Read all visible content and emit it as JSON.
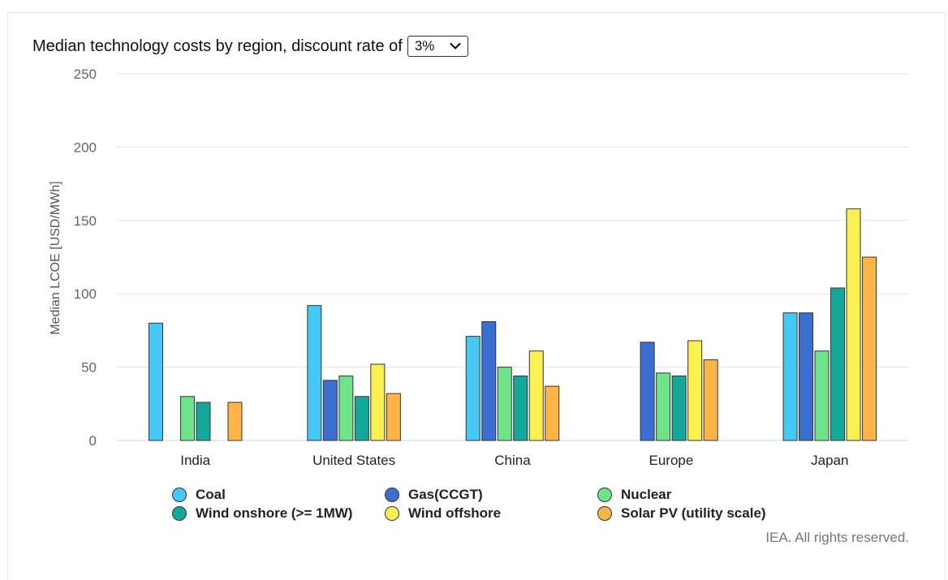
{
  "header": {
    "title": "Median technology costs by region, discount rate of",
    "discount_rate": "3%"
  },
  "credit": "IEA. All rights reserved.",
  "chart_data": {
    "type": "bar",
    "ylabel": "Median LCOE [USD/MWh]",
    "xlabel": "",
    "ylim": [
      0,
      250
    ],
    "yticks": [
      0,
      50,
      100,
      150,
      200,
      250
    ],
    "grid": true,
    "legend_position": "bottom",
    "categories": [
      "India",
      "United States",
      "China",
      "Europe",
      "Japan"
    ],
    "series": [
      {
        "name": "Coal",
        "color": "#46c8f5",
        "values": [
          80,
          92,
          71,
          null,
          87
        ]
      },
      {
        "name": "Gas(CCGT)",
        "color": "#3a6fd1",
        "values": [
          null,
          41,
          81,
          67,
          87
        ]
      },
      {
        "name": "Nuclear",
        "color": "#6ee38a",
        "values": [
          30,
          44,
          50,
          46,
          61
        ]
      },
      {
        "name": "Wind onshore (>= 1MW)",
        "color": "#13a89a",
        "values": [
          26,
          30,
          44,
          44,
          104
        ]
      },
      {
        "name": "Wind offshore",
        "color": "#fbf051",
        "values": [
          null,
          52,
          61,
          68,
          158
        ]
      },
      {
        "name": "Solar PV (utility scale)",
        "color": "#ffb447",
        "values": [
          26,
          32,
          37,
          55,
          125
        ]
      }
    ]
  }
}
